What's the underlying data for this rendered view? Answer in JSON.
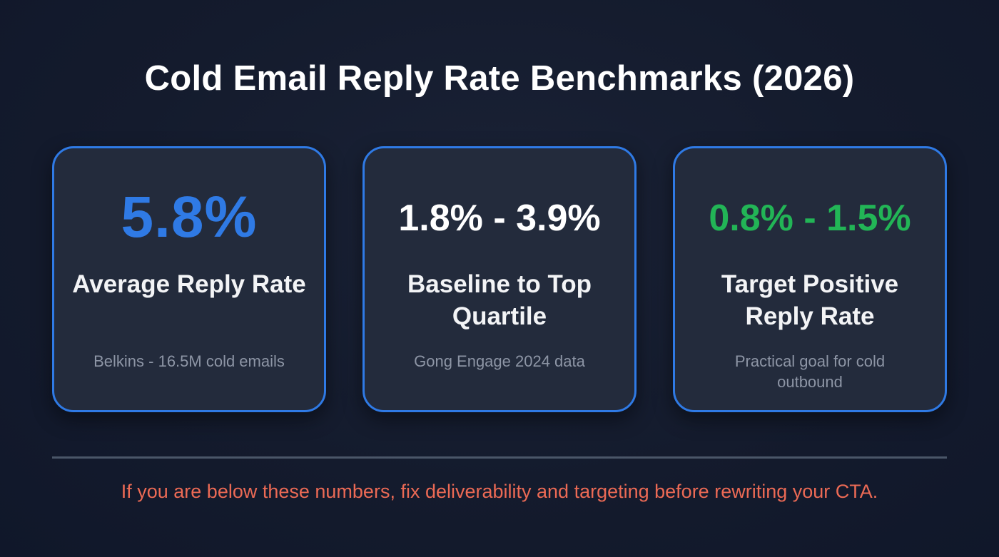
{
  "title": "Cold Email Reply Rate Benchmarks (2026)",
  "colors": {
    "background": "#141b2d",
    "card_background": "#232b3c",
    "card_border": "#2f7ae5",
    "accent_blue": "#2f7ae5",
    "accent_green": "#22b556",
    "warning_red": "#ec6a55",
    "muted_text": "#8d95a5"
  },
  "cards": [
    {
      "metric": "5.8%",
      "label": "Average Reply Rate",
      "source": "Belkins - 16.5M cold emails",
      "metric_color": "#2f7ae5"
    },
    {
      "metric": "1.8% - 3.9%",
      "label": "Baseline to Top Quartile",
      "source": "Gong Engage 2024 data",
      "metric_color": "#ffffff"
    },
    {
      "metric": "0.8% - 1.5%",
      "label": "Target Positive Reply Rate",
      "source": "Practical goal for cold outbound",
      "metric_color": "#22b556"
    }
  ],
  "footer_note": "If you are below these numbers, fix deliverability and targeting before rewriting your CTA."
}
